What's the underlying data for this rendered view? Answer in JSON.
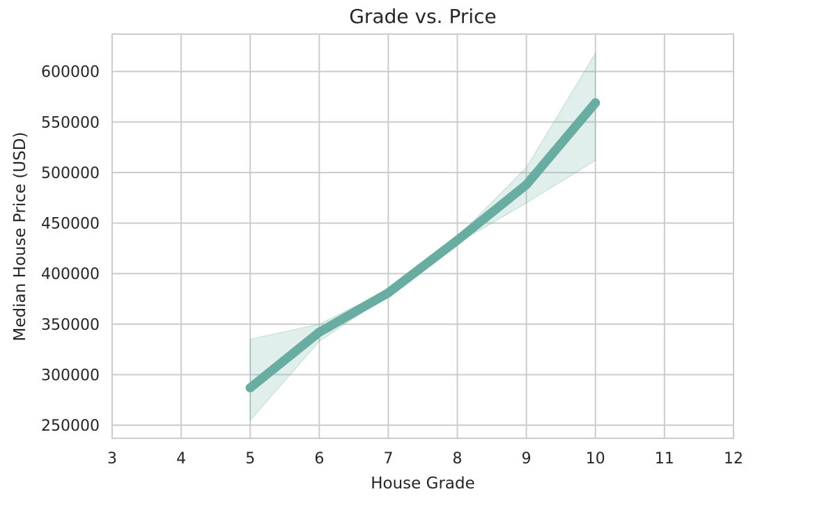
{
  "chart_data": {
    "type": "line",
    "title": "Grade vs. Price",
    "xlabel": "House Grade",
    "ylabel": "Median House Price (USD)",
    "xlim": [
      3,
      12
    ],
    "ylim": [
      237000,
      637000
    ],
    "x_ticks": [
      3,
      4,
      5,
      6,
      7,
      8,
      9,
      10,
      11,
      12
    ],
    "y_ticks": [
      250000,
      300000,
      350000,
      400000,
      450000,
      500000,
      550000,
      600000
    ],
    "grid": true,
    "legend": "none",
    "series": [
      {
        "x": [
          5,
          6,
          7,
          8,
          9,
          10
        ],
        "y": [
          287000,
          342000,
          381000,
          433000,
          488000,
          569000
        ],
        "ci_low": [
          255000,
          333000,
          379000,
          430000,
          470000,
          512000
        ],
        "ci_high": [
          335000,
          350000,
          384000,
          436000,
          505000,
          618000
        ],
        "color": "#69ada2",
        "band_color": "#69ada2"
      }
    ]
  }
}
